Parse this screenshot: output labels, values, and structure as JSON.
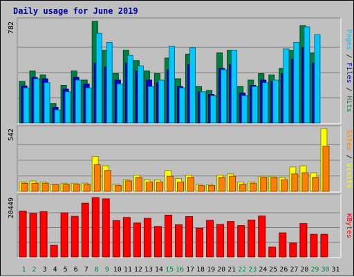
{
  "chart_data": {
    "type": "bar",
    "title": "Daily usage for June 2019",
    "categories": [
      "1",
      "2",
      "3",
      "4",
      "5",
      "6",
      "7",
      "8",
      "9",
      "10",
      "11",
      "12",
      "13",
      "14",
      "15",
      "16",
      "17",
      "18",
      "19",
      "20",
      "21",
      "22",
      "23",
      "24",
      "25",
      "26",
      "27",
      "28",
      "29",
      "30",
      "31"
    ],
    "weekend_days": [
      "1",
      "2",
      "8",
      "9",
      "15",
      "16",
      "22",
      "23",
      "29",
      "30"
    ],
    "panels": [
      {
        "name": "hits_files_pages",
        "max_label": "782",
        "ymax": 782,
        "legend": [
          {
            "text": "Pages",
            "color": "#00c8ff"
          },
          {
            "text": " / ",
            "color": "#000000"
          },
          {
            "text": "Files",
            "color": "#0000c8"
          },
          {
            "text": " / ",
            "color": "#000000"
          },
          {
            "text": "Hits",
            "color": "#008040"
          }
        ],
        "series": [
          {
            "name": "Hits",
            "color": "#008040",
            "values": [
              320,
              400,
              370,
              150,
              290,
              400,
              330,
              782,
              560,
              380,
              560,
              480,
              400,
              380,
              500,
              340,
              530,
              280,
              250,
              540,
              560,
              280,
              330,
              380,
              370,
              420,
              560,
              750,
              540,
              0
            ]
          },
          {
            "name": "Files",
            "color": "#0000c8",
            "values": [
              285,
              350,
              340,
              120,
              260,
              350,
              300,
              460,
              430,
              330,
              460,
              400,
              330,
              310,
              410,
              280,
              450,
              240,
              220,
              420,
              450,
              230,
              290,
              330,
              320,
              380,
              490,
              580,
              460,
              0
            ]
          },
          {
            "name": "Pages",
            "color": "#00c8ff",
            "values": [
              270,
              340,
              310,
              100,
              240,
              330,
              270,
              690,
              620,
              300,
              520,
              440,
              280,
              330,
              590,
              270,
              580,
              240,
              210,
              410,
              560,
              210,
              280,
              310,
              330,
              570,
              620,
              740,
              680,
              0
            ]
          }
        ]
      },
      {
        "name": "visits_sites",
        "max_label": "542",
        "ymax": 542,
        "legend": [
          {
            "text": "Sites",
            "color": "#ff8000"
          },
          {
            "text": " / ",
            "color": "#000000"
          },
          {
            "text": "Visits",
            "color": "#ffff00"
          }
        ],
        "series": [
          {
            "name": "Visits",
            "color": "#ffff00",
            "values": [
              80,
              90,
              80,
              60,
              70,
              70,
              70,
              300,
              220,
              60,
              100,
              140,
              100,
              100,
              180,
              110,
              140,
              60,
              60,
              140,
              150,
              80,
              80,
              130,
              130,
              120,
              210,
              220,
              160,
              542
            ]
          },
          {
            "name": "Sites",
            "color": "#ff8000",
            "values": [
              70,
              70,
              70,
              60,
              60,
              60,
              60,
              230,
              180,
              50,
              90,
              120,
              80,
              80,
              130,
              80,
              120,
              50,
              50,
              120,
              130,
              60,
              70,
              120,
              120,
              100,
              150,
              160,
              120,
              390
            ]
          }
        ]
      },
      {
        "name": "kbytes",
        "max_label": "20449",
        "ymax": 20449,
        "legend": [
          {
            "text": "KBytes",
            "color": "#ff0000"
          }
        ],
        "series": [
          {
            "name": "KBytes",
            "color": "#ff0000",
            "values": [
              15800,
              15000,
              15600,
              4000,
              15200,
              14000,
              18500,
              20449,
              20000,
              12500,
              13600,
              11700,
              13300,
              10500,
              14400,
              11100,
              13900,
              9900,
              12600,
              11200,
              12200,
              10800,
              12700,
              14100,
              3400,
              8300,
              4800,
              11500,
              7800,
              7800
            ]
          }
        ]
      }
    ]
  }
}
